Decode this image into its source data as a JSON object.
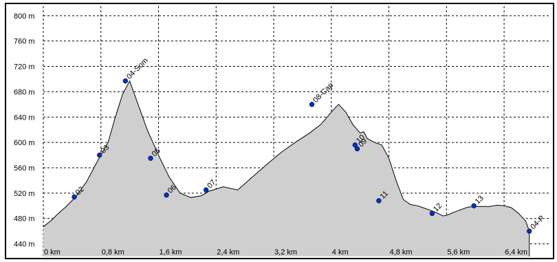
{
  "chart_data": {
    "type": "area",
    "title": "",
    "xlabel": "",
    "ylabel": "",
    "grid": true,
    "x_unit": "km",
    "y_unit": "m",
    "xlim": [
      0,
      6.9
    ],
    "ylim": [
      420,
      815
    ],
    "x_ticks": [
      0,
      0.8,
      1.6,
      2.4,
      3.2,
      4.0,
      4.8,
      5.6,
      6.4
    ],
    "x_tick_labels": [
      "0 km",
      "0,8 km",
      "1,6 km",
      "2,4 km",
      "3,2 km",
      "4 km",
      "4,8 km",
      "5,6 km",
      "6,4 km"
    ],
    "y_ticks": [
      440,
      480,
      520,
      560,
      600,
      640,
      680,
      720,
      760,
      800
    ],
    "y_tick_labels": [
      "440 m",
      "480 m",
      "520 m",
      "560 m",
      "600 m",
      "640 m",
      "680 m",
      "720 m",
      "760 m",
      "800 m"
    ],
    "profile": {
      "x": [
        0.0,
        0.1,
        0.2,
        0.3,
        0.45,
        0.6,
        0.75,
        0.9,
        1.0,
        1.1,
        1.2,
        1.3,
        1.45,
        1.55,
        1.62,
        1.75,
        1.9,
        2.05,
        2.2,
        2.3,
        2.5,
        2.7,
        2.9,
        3.1,
        3.3,
        3.5,
        3.7,
        3.85,
        3.95,
        4.0,
        4.1,
        4.2,
        4.3,
        4.4,
        4.45,
        4.5,
        4.6,
        4.7,
        4.8,
        4.9,
        5.0,
        5.1,
        5.2,
        5.3,
        5.4,
        5.5,
        5.55,
        5.6,
        5.75,
        5.9,
        6.05,
        6.2,
        6.3,
        6.4,
        6.5,
        6.6,
        6.7,
        6.75
      ],
      "y": [
        467,
        476,
        487,
        497,
        514,
        538,
        570,
        600,
        640,
        676,
        697,
        665,
        618,
        593,
        575,
        545,
        520,
        513,
        516,
        523,
        530,
        525,
        545,
        565,
        584,
        600,
        615,
        628,
        641,
        648,
        660,
        648,
        628,
        615,
        617,
        606,
        600,
        596,
        575,
        540,
        510,
        502,
        500,
        496,
        492,
        487,
        484,
        485,
        492,
        498,
        499,
        499,
        501,
        500,
        497,
        488,
        476,
        460
      ]
    },
    "waypoints": [
      {
        "label": "02",
        "x": 0.43,
        "y": 514
      },
      {
        "label": "03",
        "x": 0.78,
        "y": 580
      },
      {
        "label": "04-Som",
        "x": 1.14,
        "y": 697
      },
      {
        "label": "05",
        "x": 1.49,
        "y": 575
      },
      {
        "label": "06",
        "x": 1.71,
        "y": 517
      },
      {
        "label": "07",
        "x": 2.26,
        "y": 525
      },
      {
        "label": "08-Cap",
        "x": 3.73,
        "y": 660
      },
      {
        "label": "09",
        "x": 4.36,
        "y": 590
      },
      {
        "label": "10",
        "x": 4.33,
        "y": 596
      },
      {
        "label": "11",
        "x": 4.66,
        "y": 508
      },
      {
        "label": "12",
        "x": 5.4,
        "y": 488
      },
      {
        "label": "13",
        "x": 5.98,
        "y": 500
      },
      {
        "label": "04-P",
        "x": 6.75,
        "y": 460
      }
    ],
    "colors": {
      "fill": "#cfcfcf",
      "line": "#000000",
      "grid": "#000000",
      "marker": "#0033cc",
      "marker_stroke": "#001a66"
    }
  }
}
